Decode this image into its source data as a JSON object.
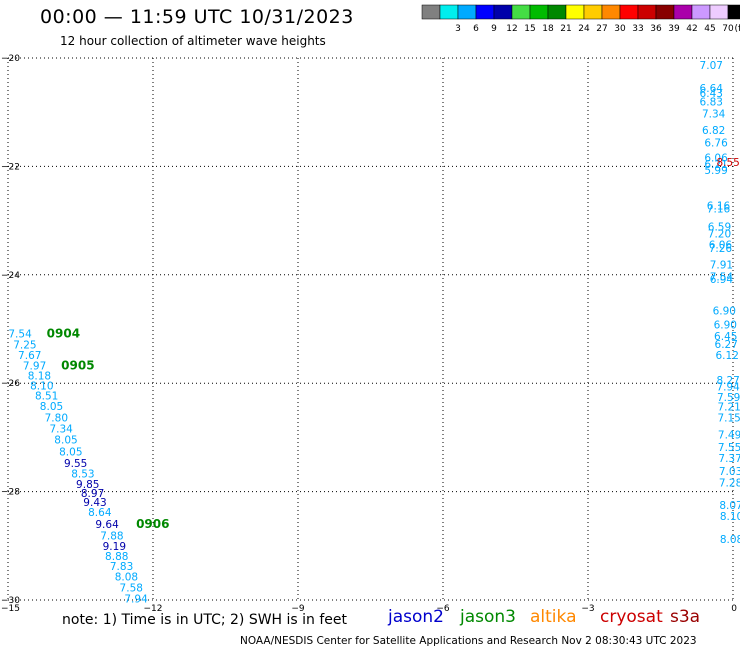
{
  "title": "00:00 — 11:59 UTC 10/31/2023",
  "subtitle": "12 hour collection of altimeter wave heights",
  "note": "note: 1) Time is in UTC; 2) SWH is in feet",
  "credit": "NOAA/NESDIS Center for Satellite Applications and Research    Nov  2 08:30:43 UTC 2023",
  "satellites": [
    {
      "name": "jason2",
      "color": "#0000cc"
    },
    {
      "name": "jason3",
      "color": "#008800"
    },
    {
      "name": "altika",
      "color": "#ff8800"
    },
    {
      "name": "cryosat",
      "color": "#cc0000"
    },
    {
      "name": "s3a",
      "color": "#990000"
    }
  ],
  "color_scale": {
    "unit": "(ft)",
    "bins": [
      {
        "label": "",
        "color": "#808080"
      },
      {
        "label": "3",
        "color": "#00eeee"
      },
      {
        "label": "6",
        "color": "#00aaff"
      },
      {
        "label": "9",
        "color": "#0000ff"
      },
      {
        "label": "12",
        "color": "#0000aa"
      },
      {
        "label": "15",
        "color": "#44dd44"
      },
      {
        "label": "18",
        "color": "#00bb00"
      },
      {
        "label": "21",
        "color": "#008800"
      },
      {
        "label": "24",
        "color": "#ffff00"
      },
      {
        "label": "27",
        "color": "#ffcc00"
      },
      {
        "label": "30",
        "color": "#ff8800"
      },
      {
        "label": "33",
        "color": "#ff0000"
      },
      {
        "label": "36",
        "color": "#cc0000"
      },
      {
        "label": "39",
        "color": "#880000"
      },
      {
        "label": "42",
        "color": "#aa00aa"
      },
      {
        "label": "45",
        "color": "#cc99ff"
      },
      {
        "label": "70",
        "color": "#eeccff"
      },
      {
        "label": "",
        "color": "#000000"
      }
    ]
  },
  "chart_data": {
    "type": "scatter",
    "xlim": [
      -15,
      0
    ],
    "ylim": [
      -30,
      -20
    ],
    "x_ticks": [
      -15,
      -12,
      -9,
      -6,
      -3,
      0
    ],
    "y_ticks": [
      -20,
      -22,
      -24,
      -26,
      -28,
      -30
    ],
    "x_tick_labels": [
      "−15",
      "−12",
      "−9",
      "−6",
      "−3",
      "0"
    ],
    "y_tick_labels": [
      "−20",
      "−22",
      "−24",
      "−26",
      "−28",
      "−30"
    ],
    "grid": true,
    "series": [
      {
        "color": "#00aaff",
        "points": [
          {
            "x": -14.75,
            "y": -25.08,
            "label": "7.54"
          },
          {
            "x": -14.65,
            "y": -25.29,
            "label": "7.25"
          },
          {
            "x": -14.55,
            "y": -25.48,
            "label": "7.67"
          },
          {
            "x": -14.45,
            "y": -25.67,
            "label": "7.97"
          },
          {
            "x": -14.35,
            "y": -25.86,
            "label": "8.18"
          },
          {
            "x": -14.3,
            "y": -26.04,
            "label": "8.10"
          },
          {
            "x": -14.2,
            "y": -26.23,
            "label": "8.51"
          },
          {
            "x": -14.1,
            "y": -26.42,
            "label": "8.05"
          },
          {
            "x": -14.0,
            "y": -26.63,
            "label": "7.80"
          },
          {
            "x": -13.9,
            "y": -26.84,
            "label": "7.34"
          },
          {
            "x": -13.8,
            "y": -27.04,
            "label": "8.05"
          },
          {
            "x": -13.7,
            "y": -27.26,
            "label": "8.05"
          },
          {
            "x": -13.45,
            "y": -27.67,
            "label": "8.53"
          },
          {
            "x": -13.1,
            "y": -28.38,
            "label": "8.64"
          },
          {
            "x": -12.85,
            "y": -28.81,
            "label": "7.88"
          },
          {
            "x": -12.75,
            "y": -29.19,
            "label": "8.88"
          },
          {
            "x": -12.65,
            "y": -29.37,
            "label": "7.83"
          },
          {
            "x": -12.55,
            "y": -29.57,
            "label": "8.08"
          },
          {
            "x": -12.45,
            "y": -29.77,
            "label": "7.58"
          },
          {
            "x": -12.35,
            "y": -29.97,
            "label": "7.94"
          }
        ]
      },
      {
        "color": "#0000aa",
        "points": [
          {
            "x": -13.6,
            "y": -27.47,
            "label": "9.55"
          },
          {
            "x": -13.35,
            "y": -27.86,
            "label": "9.85"
          },
          {
            "x": -13.25,
            "y": -28.03,
            "label": "8.97"
          },
          {
            "x": -13.2,
            "y": -28.19,
            "label": "9.43"
          },
          {
            "x": -12.95,
            "y": -28.6,
            "label": "9.64"
          },
          {
            "x": -12.8,
            "y": -29.0,
            "label": "9.19"
          }
        ]
      },
      {
        "color": "#00aaff",
        "points": [
          {
            "x": -0.45,
            "y": -20.13,
            "label": "7.07"
          },
          {
            "x": -0.45,
            "y": -20.55,
            "label": "6.64"
          },
          {
            "x": -0.45,
            "y": -20.65,
            "label": "6.43"
          },
          {
            "x": -0.45,
            "y": -20.8,
            "label": "6.83"
          },
          {
            "x": -0.4,
            "y": -21.02,
            "label": "7.34"
          },
          {
            "x": -0.4,
            "y": -21.33,
            "label": "6.82"
          },
          {
            "x": -0.35,
            "y": -21.56,
            "label": "6.76"
          },
          {
            "x": -0.35,
            "y": -21.84,
            "label": "6.06"
          },
          {
            "x": -0.35,
            "y": -21.96,
            "label": "6.21"
          },
          {
            "x": -0.35,
            "y": -22.07,
            "label": "5.99"
          },
          {
            "x": -0.3,
            "y": -22.72,
            "label": "6.16"
          },
          {
            "x": -0.3,
            "y": -22.78,
            "label": "7.16"
          },
          {
            "x": -0.28,
            "y": -23.11,
            "label": "6.59"
          },
          {
            "x": -0.28,
            "y": -23.24,
            "label": "7.20"
          },
          {
            "x": -0.26,
            "y": -23.44,
            "label": "6.06"
          },
          {
            "x": -0.26,
            "y": -23.51,
            "label": "7.26"
          },
          {
            "x": -0.24,
            "y": -23.81,
            "label": "7.91"
          },
          {
            "x": -0.24,
            "y": -24.03,
            "label": "7.54"
          },
          {
            "x": -0.24,
            "y": -24.08,
            "label": "6.94"
          },
          {
            "x": -0.18,
            "y": -24.66,
            "label": "6.90"
          },
          {
            "x": -0.16,
            "y": -24.92,
            "label": "6.90"
          },
          {
            "x": -0.15,
            "y": -25.13,
            "label": "6.45"
          },
          {
            "x": -0.14,
            "y": -25.28,
            "label": "6.27"
          },
          {
            "x": -0.12,
            "y": -25.48,
            "label": "6.12"
          },
          {
            "x": -0.1,
            "y": -25.94,
            "label": "8.27"
          },
          {
            "x": -0.1,
            "y": -26.06,
            "label": "7.94"
          },
          {
            "x": -0.09,
            "y": -26.25,
            "label": "7.59"
          },
          {
            "x": -0.08,
            "y": -26.43,
            "label": "7.21"
          },
          {
            "x": -0.08,
            "y": -26.63,
            "label": "7.15"
          },
          {
            "x": -0.07,
            "y": -26.95,
            "label": "7.49"
          },
          {
            "x": -0.07,
            "y": -27.18,
            "label": "7.55"
          },
          {
            "x": -0.06,
            "y": -27.38,
            "label": "7.37"
          },
          {
            "x": -0.05,
            "y": -27.62,
            "label": "7.03"
          },
          {
            "x": -0.05,
            "y": -27.83,
            "label": "7.28"
          },
          {
            "x": -0.04,
            "y": -28.25,
            "label": "8.07"
          },
          {
            "x": -0.03,
            "y": -28.45,
            "label": "8.10"
          },
          {
            "x": -0.03,
            "y": -28.87,
            "label": "8.08"
          }
        ]
      },
      {
        "color": "#cc0000",
        "points": [
          {
            "x": -0.1,
            "y": -21.92,
            "label": "8.55"
          }
        ]
      }
    ],
    "time_labels": [
      {
        "x": -14.2,
        "y": -25.08,
        "label": "0904",
        "color": "#008800"
      },
      {
        "x": -13.9,
        "y": -25.67,
        "label": "0905",
        "color": "#008800"
      },
      {
        "x": -12.35,
        "y": -28.6,
        "label": "0906",
        "color": "#008800"
      }
    ]
  }
}
